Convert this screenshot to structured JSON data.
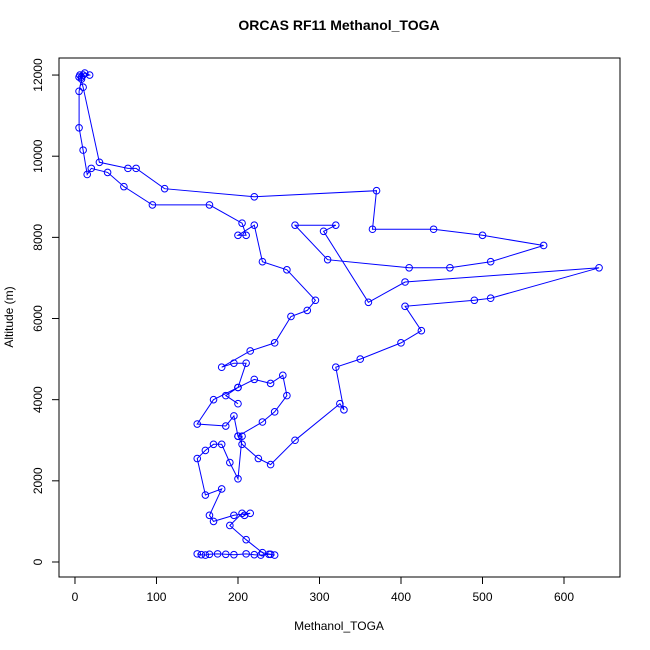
{
  "chart_data": {
    "type": "line",
    "title": "ORCAS RF11 Methanol_TOGA",
    "x_label": "Methanol_TOGA",
    "y_label": "Altitude (m)",
    "color": "#0000ff",
    "x": [
      150,
      155,
      160,
      165,
      175,
      185,
      195,
      210,
      220,
      228,
      238,
      245,
      240,
      230,
      210,
      190,
      205,
      208,
      215,
      195,
      170,
      165,
      180,
      160,
      150,
      160,
      170,
      180,
      190,
      200,
      205,
      200,
      195,
      185,
      150,
      170,
      200,
      210,
      195,
      180,
      215,
      245,
      265,
      285,
      295,
      260,
      230,
      220,
      200,
      210,
      205,
      165,
      95,
      60,
      40,
      20,
      15,
      10,
      5,
      5,
      8,
      10,
      5,
      12,
      18,
      8,
      6,
      10,
      30,
      65,
      75,
      110,
      220,
      370,
      365,
      440,
      500,
      575,
      510,
      460,
      410,
      310,
      270,
      320,
      305,
      360,
      405,
      643,
      510,
      490,
      405,
      425,
      400,
      350,
      320,
      330,
      325,
      270,
      240,
      225,
      205,
      200,
      230,
      245,
      260,
      255,
      240,
      220,
      200,
      185,
      200
    ],
    "values": [
      200,
      180,
      170,
      190,
      200,
      190,
      180,
      200,
      180,
      170,
      190,
      170,
      190,
      230,
      550,
      900,
      1200,
      1150,
      1200,
      1150,
      1000,
      1150,
      1800,
      1650,
      2550,
      2750,
      2900,
      2900,
      2450,
      2050,
      3100,
      3100,
      3600,
      3350,
      3400,
      4000,
      4300,
      4900,
      4900,
      4800,
      5200,
      5400,
      6050,
      6200,
      6450,
      7200,
      7400,
      8300,
      8050,
      8050,
      8350,
      8800,
      8800,
      9250,
      9600,
      9700,
      9550,
      10150,
      10700,
      11600,
      11900,
      12000,
      11950,
      12050,
      12000,
      11950,
      12000,
      11700,
      9850,
      9700,
      9700,
      9200,
      9000,
      9150,
      8200,
      8200,
      8050,
      7800,
      7400,
      7250,
      7250,
      7450,
      8300,
      8300,
      8150,
      6400,
      6900,
      7250,
      6500,
      6450,
      6300,
      5700,
      5400,
      5000,
      4800,
      3750,
      3900,
      3000,
      2400,
      2550,
      2900,
      3100,
      3450,
      3700,
      4100,
      4600,
      4400,
      4500,
      4300,
      4100,
      3900
    ],
    "xlim": [
      -19.6,
      668.7
    ],
    "ylim": [
      -370,
      12420
    ],
    "xticks": [
      0,
      100,
      200,
      300,
      400,
      500,
      600
    ],
    "yticks": [
      0,
      2000,
      4000,
      6000,
      8000,
      10000,
      12000
    ]
  }
}
